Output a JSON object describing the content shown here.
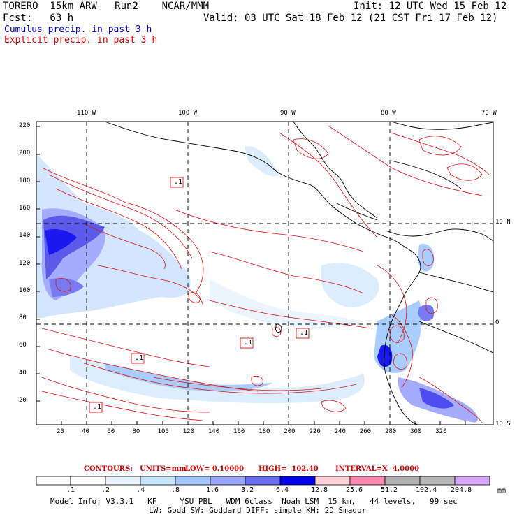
{
  "header": {
    "model": "TORERO  15km ARW   Run2    NCAR/MMM",
    "init": "Init: 12 UTC Wed 15 Feb 12",
    "fcst": "Fcst:   63 h",
    "valid": "Valid: 03 UTC Sat 18 Feb 12 (21 CST Fri 17 Feb 12)",
    "legend_cumulus": "Cumulus precip. in past 3 h",
    "legend_explicit": "Explicit precip. in past 3 h"
  },
  "map": {
    "top_longitudes": [
      "110 W",
      "100 W",
      "90 W",
      "80 W",
      "70 W"
    ],
    "right_latitudes": [
      "10 N",
      "0",
      "10 S"
    ],
    "x_ticks": [
      "20",
      "40",
      "60",
      "80",
      "100",
      "120",
      "140",
      "160",
      "180",
      "200",
      "220",
      "240",
      "260",
      "280",
      "300",
      "320"
    ],
    "y_ticks": [
      "220",
      "200",
      "180",
      "160",
      "140",
      "120",
      "100",
      "80",
      "60",
      "40",
      "20"
    ],
    "contour_labels": [
      ".1",
      ".1",
      ".1",
      ".1",
      ".1",
      ".1"
    ]
  },
  "contour_info": {
    "contours": "CONTOURS:",
    "units": "UNITS=mm",
    "low": "LOW= 0.10000",
    "high": "HIGH=  102.40",
    "interval": "INTERVAL=X  4.0000"
  },
  "colorbar": {
    "labels": [
      ".1",
      ".2",
      ".4",
      ".8",
      "1.6",
      "3.2",
      "6.4",
      "12.8",
      "25.6",
      "51.2",
      "102.4",
      "204.8"
    ],
    "unit": "mm",
    "colors": [
      "#ffffff",
      "#ffffff",
      "#e8f4ff",
      "#c8e6ff",
      "#a0c8ff",
      "#9aa4ff",
      "#6a6cf0",
      "#3a3aee",
      "#0000ee",
      "#ffd0d8",
      "#ff88b0",
      "#b0b0b0",
      "#d0a0ff"
    ]
  },
  "footer": {
    "line1": "Model Info: V3.3.1   KF     YSU PBL   WDM 6class  Noah LSM  15 km,   44 levels,   99 sec",
    "line2": "LW: Godd SW: Goddard DIFF: simple KM: 2D Smagor"
  }
}
